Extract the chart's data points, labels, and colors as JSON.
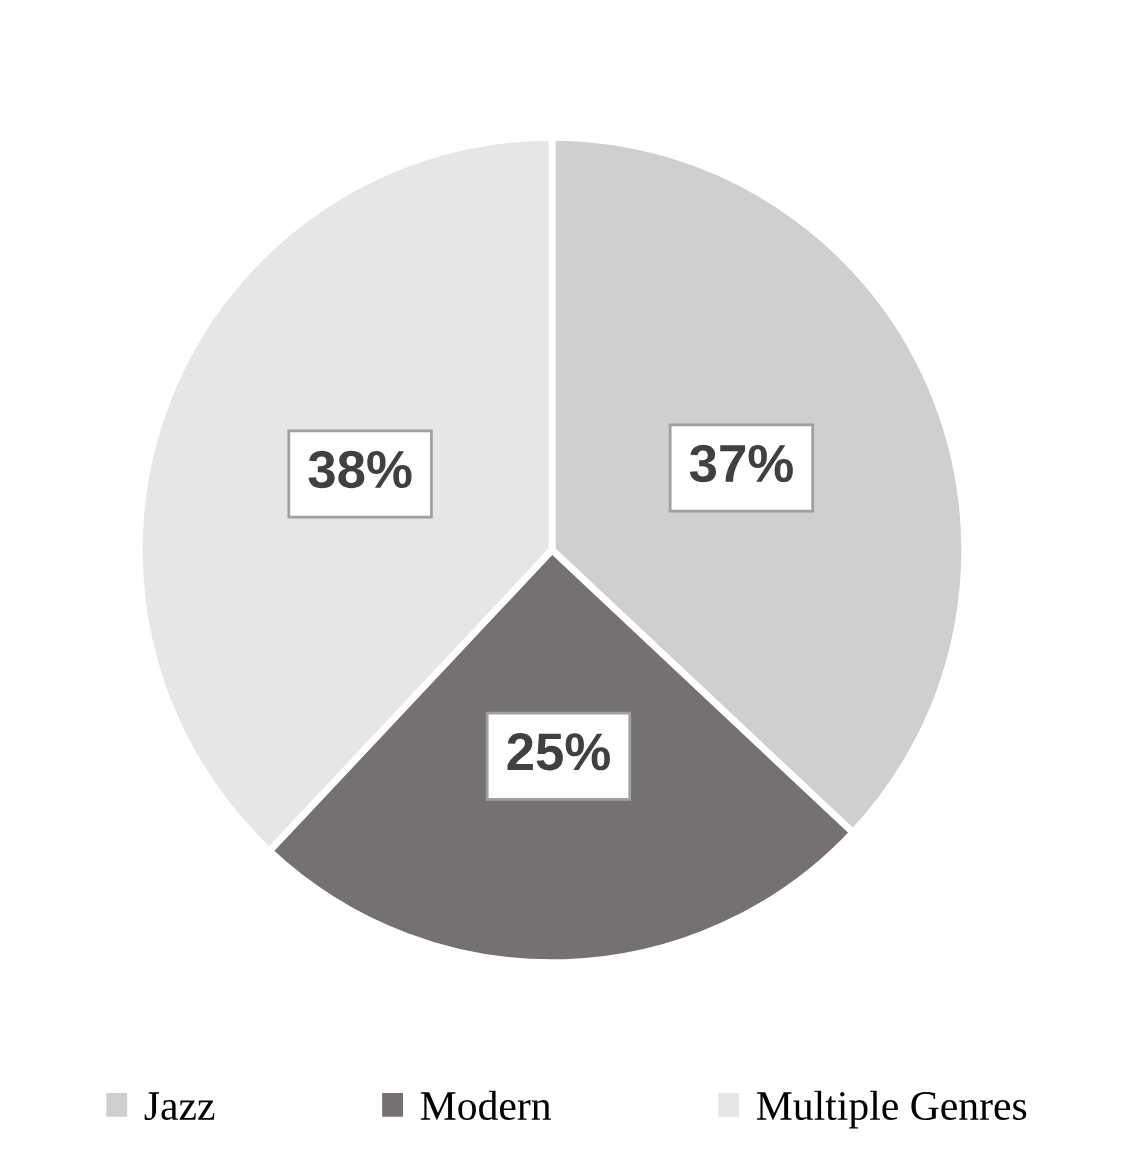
{
  "chart_data": {
    "type": "pie",
    "categories": [
      "Jazz",
      "Modern",
      "Multiple Genres"
    ],
    "values": [
      37,
      25,
      38
    ],
    "colors": [
      "#d0cece",
      "#767171",
      "#e6e6e6"
    ],
    "value_labels": [
      "37%",
      "25%",
      "38%"
    ],
    "legend": "bottom"
  }
}
